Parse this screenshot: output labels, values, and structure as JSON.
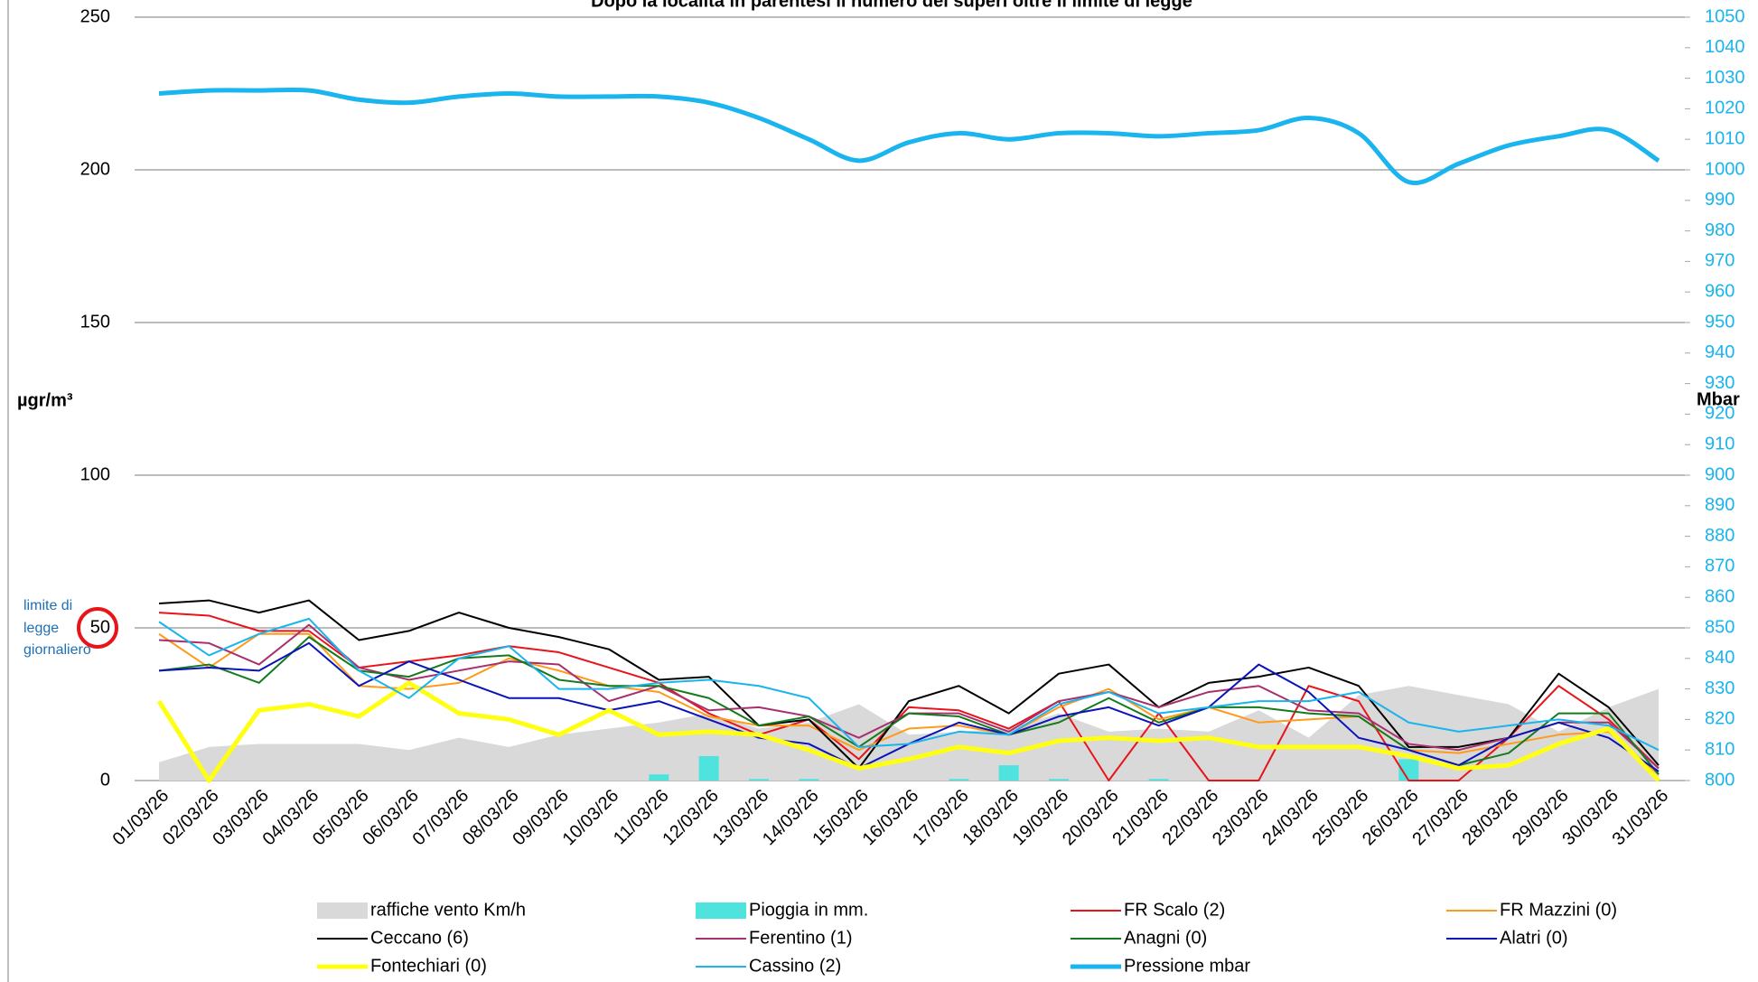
{
  "chart_data": {
    "type": "line",
    "title": "Dopo la località in parentesi il numero dei superi oltre il limite di legge",
    "y_label": "µgr/m³",
    "y2_label": "Mbar",
    "annotation": [
      "limite di",
      "legge",
      "giornaliero"
    ],
    "categories": [
      "01/03/26",
      "02/03/26",
      "03/03/26",
      "04/03/26",
      "05/03/26",
      "06/03/26",
      "07/03/26",
      "08/03/26",
      "09/03/26",
      "10/03/26",
      "11/03/26",
      "12/03/26",
      "13/03/26",
      "14/03/26",
      "15/03/26",
      "16/03/26",
      "17/03/26",
      "18/03/26",
      "19/03/26",
      "20/03/26",
      "21/03/26",
      "22/03/26",
      "23/03/26",
      "24/03/26",
      "25/03/26",
      "26/03/26",
      "27/03/26",
      "28/03/26",
      "29/03/26",
      "30/03/26",
      "31/03/26"
    ],
    "ylim": [
      0,
      250
    ],
    "yticks": [
      0,
      50,
      100,
      150,
      200,
      250
    ],
    "y2lim": [
      800,
      1050
    ],
    "y2ticks": [
      800,
      810,
      820,
      830,
      840,
      850,
      860,
      870,
      880,
      890,
      900,
      910,
      920,
      930,
      940,
      950,
      960,
      970,
      980,
      990,
      1000,
      1010,
      1020,
      1030,
      1040,
      1050
    ],
    "grid": true,
    "legend": "bottom",
    "series": [
      {
        "name": "raffiche vento Km/h",
        "type": "area",
        "color": "#d9d9d9",
        "values": [
          6,
          11,
          12,
          12,
          12,
          10,
          14,
          11,
          15,
          17,
          19,
          22,
          17,
          19,
          25,
          15,
          16,
          17,
          22,
          16,
          17,
          16,
          23,
          14,
          28,
          31,
          28,
          25,
          16,
          24,
          30
        ]
      },
      {
        "name": "Pioggia in mm.",
        "type": "bar",
        "color": "#4ee3dd",
        "values": [
          0,
          0,
          0,
          0,
          0,
          0,
          0,
          0,
          0,
          0,
          2,
          8,
          0.5,
          0.5,
          0,
          0,
          0.5,
          5,
          0.5,
          0,
          0.5,
          0,
          0,
          0,
          0,
          7,
          0,
          0,
          0,
          0,
          0
        ]
      },
      {
        "name": "FR Scalo (2)",
        "type": "line",
        "color": "#e8141a",
        "width": 2,
        "values": [
          55,
          54,
          49,
          49,
          37,
          39,
          41,
          44,
          42,
          37,
          32,
          22,
          15,
          20,
          7,
          24,
          23,
          17,
          26,
          0,
          22,
          0,
          0,
          31,
          26,
          0,
          0,
          14,
          31,
          20,
          4
        ]
      },
      {
        "name": "FR Mazzini (0)",
        "type": "line",
        "color": "#ff9a1a",
        "width": 2,
        "values": [
          48,
          37,
          48,
          48,
          31,
          30,
          32,
          40,
          36,
          31,
          29,
          21,
          18,
          18,
          10,
          17,
          18,
          15,
          24,
          30,
          20,
          24,
          19,
          20,
          21,
          10,
          9,
          12,
          15,
          16,
          2
        ]
      },
      {
        "name": "Ceccano (6)",
        "type": "line",
        "color": "#000000",
        "width": 2,
        "values": [
          58,
          59,
          55,
          59,
          46,
          49,
          55,
          50,
          47,
          43,
          33,
          34,
          18,
          20,
          4,
          26,
          31,
          22,
          35,
          38,
          24,
          32,
          34,
          37,
          31,
          11,
          11,
          14,
          35,
          24,
          5
        ]
      },
      {
        "name": "Ferentino (1)",
        "type": "line",
        "color": "#a8306e",
        "width": 2,
        "values": [
          46,
          45,
          38,
          51,
          37,
          33,
          36,
          39,
          38,
          26,
          31,
          23,
          24,
          21,
          14,
          22,
          22,
          16,
          26,
          29,
          24,
          29,
          31,
          23,
          22,
          12,
          10,
          14,
          19,
          19,
          4
        ]
      },
      {
        "name": "Anagni (0)",
        "type": "line",
        "color": "#157a1e",
        "width": 2,
        "values": [
          36,
          38,
          32,
          47,
          36,
          34,
          40,
          41,
          33,
          31,
          31,
          27,
          18,
          21,
          11,
          22,
          21,
          15,
          19,
          27,
          19,
          24,
          24,
          22,
          21,
          10,
          5,
          9,
          22,
          22,
          2
        ]
      },
      {
        "name": "Alatri (0)",
        "type": "line",
        "color": "#0a14b8",
        "width": 2,
        "values": [
          36,
          37,
          36,
          45,
          31,
          39,
          33,
          27,
          27,
          23,
          26,
          20,
          14,
          12,
          4,
          12,
          19,
          15,
          21,
          24,
          18,
          24,
          38,
          29,
          14,
          10,
          5,
          14,
          19,
          14,
          3
        ]
      },
      {
        "name": "Fontechiari (0)",
        "type": "line",
        "color": "#ffff14",
        "width": 5,
        "values": [
          26,
          0,
          23,
          25,
          21,
          32,
          22,
          20,
          15,
          23,
          15,
          16,
          15,
          10,
          4,
          7,
          11,
          9,
          13,
          14,
          13,
          14,
          11,
          11,
          11,
          8,
          4,
          5,
          12,
          17,
          0
        ]
      },
      {
        "name": "Cassino (2)",
        "type": "line",
        "color": "#1ab4ee",
        "width": 2,
        "values": [
          52,
          41,
          48,
          53,
          36,
          27,
          40,
          44,
          30,
          30,
          32,
          33,
          31,
          27,
          11,
          12,
          16,
          15,
          25,
          29,
          22,
          24,
          26,
          26,
          29,
          19,
          16,
          18,
          20,
          18,
          10
        ]
      },
      {
        "name": "Pressione mbar",
        "type": "line",
        "axis": "y2",
        "smooth": true,
        "color": "#1ab4ee",
        "width": 5,
        "values": [
          1025,
          1026,
          1026,
          1026,
          1023,
          1022,
          1024,
          1025,
          1024,
          1024,
          1024,
          1022,
          1017,
          1010,
          1003,
          1009,
          1012,
          1010,
          1012,
          1012,
          1011,
          1012,
          1013,
          1017,
          1012,
          996,
          1002,
          1008,
          1011,
          1013,
          1003
        ]
      }
    ]
  }
}
